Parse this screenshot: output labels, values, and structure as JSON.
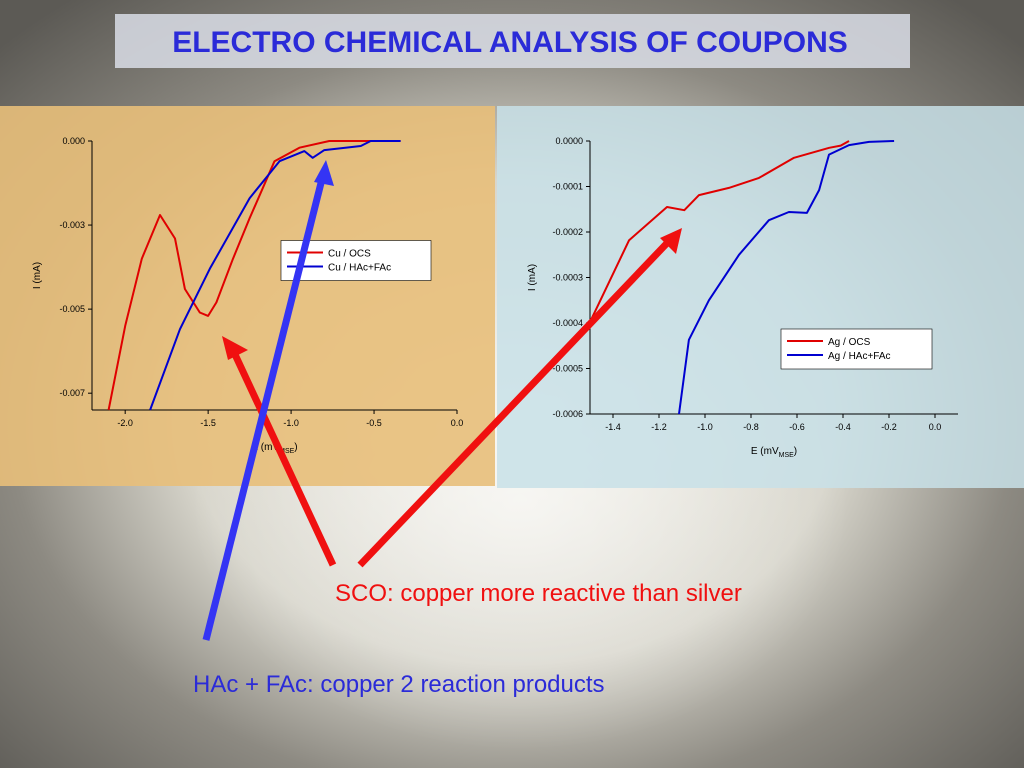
{
  "title": "ELECTRO CHEMICAL ANALYSIS OF COUPONS",
  "annotations": [
    "SCO: copper more reactive than silver",
    "HAc + FAc: copper 2 reaction products"
  ],
  "chart_data": [
    {
      "type": "line",
      "xlabel": [
        "E (mV",
        "MSE",
        ")"
      ],
      "ylabel": "I (mA)",
      "xlim": [
        -2.2,
        0
      ],
      "ylim": [
        -0.008,
        0
      ],
      "xticks": [
        {
          "value": -2,
          "label": "-2.0"
        },
        {
          "value": -1.5,
          "label": "-1.5"
        },
        {
          "value": -1,
          "label": "-1.0"
        },
        {
          "value": -0.5,
          "label": "-0.5"
        },
        {
          "value": 0,
          "label": "0.0"
        }
      ],
      "yticks": [
        {
          "value": 0,
          "label": "0.000"
        },
        {
          "value": -0.0025,
          "label": "-0.003"
        },
        {
          "value": -0.005,
          "label": "-0.005"
        },
        {
          "value": -0.0075,
          "label": "-0.007"
        }
      ],
      "legend": "center right",
      "series": [
        {
          "name": "Cu / OCS",
          "color": "#e00000",
          "x": [
            -2.1,
            -2.0,
            -1.9,
            -1.79,
            -1.7,
            -1.64,
            -1.55,
            -1.5,
            -1.45,
            -1.35,
            -1.25,
            -1.1,
            -0.95,
            -0.77,
            -0.34
          ],
          "values": [
            -0.008,
            -0.0055,
            -0.0035,
            -0.0022,
            -0.0029,
            -0.0044,
            -0.0051,
            -0.0052,
            -0.0048,
            -0.0035,
            -0.0023,
            -0.0006,
            -0.0002,
            0,
            0
          ]
        },
        {
          "name": "Cu / HAc+FAc",
          "color": "#0000d0",
          "x": [
            -1.85,
            -1.67,
            -1.49,
            -1.25,
            -1.07,
            -0.92,
            -0.87,
            -0.8,
            -0.58,
            -0.52,
            -0.34
          ],
          "values": [
            -0.008,
            -0.0056,
            -0.0038,
            -0.0017,
            -0.0006,
            -0.0003,
            -0.0005,
            -0.00027,
            -0.00015,
            0,
            0
          ]
        }
      ]
    },
    {
      "type": "line",
      "xlabel": [
        "E (mV",
        "MSE",
        ")"
      ],
      "ylabel": "I (mA)",
      "xlim": [
        -1.5,
        0.1
      ],
      "ylim": [
        -0.0006,
        0
      ],
      "xticks": [
        -1.4,
        -1.2,
        {
          "value": -1,
          "label": "-1.0"
        },
        -0.8,
        -0.6,
        -0.4,
        -0.2,
        {
          "value": 0,
          "label": "0.0"
        }
      ],
      "yticks": [
        {
          "value": 0,
          "label": "0.0000"
        },
        {
          "value": -0.0001,
          "label": "-0.0001"
        },
        {
          "value": -0.0002,
          "label": "-0.0002"
        },
        {
          "value": -0.0003,
          "label": "-0.0003"
        },
        {
          "value": -0.0004,
          "label": "-0.0004"
        },
        {
          "value": -0.0005,
          "label": "-0.0005"
        },
        {
          "value": -0.0006,
          "label": "-0.0006"
        }
      ],
      "legend": "lower right",
      "series": [
        {
          "name": "Ag / OCS",
          "color": "#e00000",
          "x": [
            -1.5,
            -1.33,
            -1.165,
            -1.09,
            -1.026,
            -0.896,
            -0.765,
            -0.613,
            -0.46,
            -0.41,
            -0.374
          ],
          "values": [
            -0.000398,
            -0.000218,
            -0.000145,
            -0.000152,
            -0.000119,
            -0.000103,
            -8.1e-05,
            -3.7e-05,
            -1.5e-05,
            -1e-05,
            0
          ]
        },
        {
          "name": "Ag / HAc+FAc",
          "color": "#0000d0",
          "x": [
            -1.113,
            -1.07,
            -0.983,
            -0.852,
            -0.722,
            -0.635,
            -0.557,
            -0.504,
            -0.461,
            -0.374,
            -0.287,
            -0.178
          ],
          "values": [
            -0.0006,
            -0.000437,
            -0.00035,
            -0.00025,
            -0.000174,
            -0.000156,
            -0.000158,
            -0.000108,
            -3e-05,
            -9e-06,
            -2e-06,
            0
          ]
        }
      ]
    }
  ]
}
